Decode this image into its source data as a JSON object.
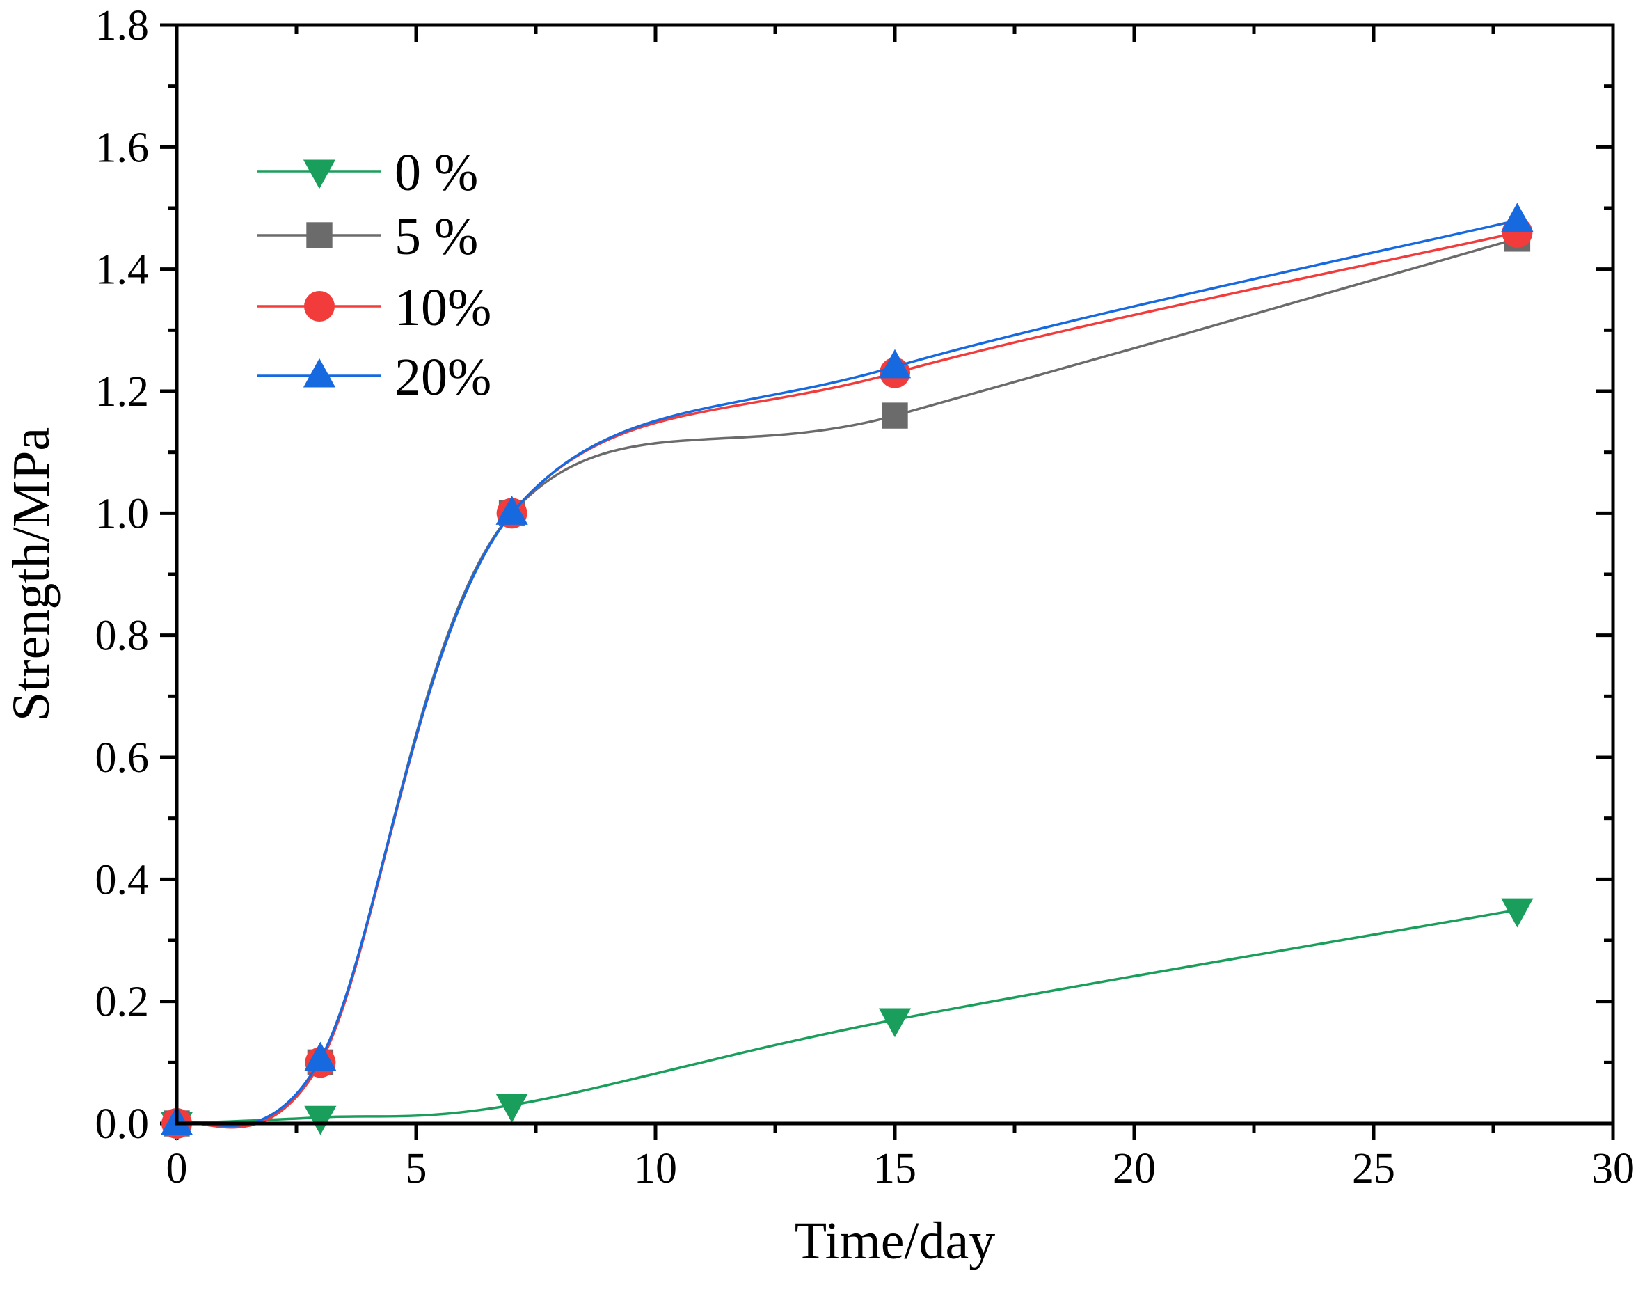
{
  "chart_data": {
    "type": "line",
    "title": "",
    "xlabel": "Time/day",
    "ylabel": "Strength/MPa",
    "xlim": [
      0,
      30
    ],
    "ylim": [
      0,
      1.8
    ],
    "x_ticks": [
      {
        "value": 0,
        "label": "0"
      },
      {
        "value": 5,
        "label": "5"
      },
      {
        "value": 10,
        "label": "10"
      },
      {
        "value": 15,
        "label": "15"
      },
      {
        "value": 20,
        "label": "20"
      },
      {
        "value": 25,
        "label": "25"
      },
      {
        "value": 30,
        "label": "30"
      }
    ],
    "y_ticks": [
      {
        "value": 0.0,
        "label": "0.0"
      },
      {
        "value": 0.2,
        "label": "0.2"
      },
      {
        "value": 0.4,
        "label": "0.4"
      },
      {
        "value": 0.6,
        "label": "0.6"
      },
      {
        "value": 0.8,
        "label": "0.8"
      },
      {
        "value": 1.0,
        "label": "1.0"
      },
      {
        "value": 1.2,
        "label": "1.2"
      },
      {
        "value": 1.4,
        "label": "1.4"
      },
      {
        "value": 1.6,
        "label": "1.6"
      },
      {
        "value": 1.8,
        "label": "1.8"
      }
    ],
    "x_minor_step": 2.5,
    "y_minor_step": 0.1,
    "grid": false,
    "legend_position": "top-left",
    "x": [
      0,
      3,
      7,
      15,
      28
    ],
    "series": [
      {
        "name": "0 %",
        "values": [
          0.0,
          0.01,
          0.03,
          0.17,
          0.35
        ],
        "color": "#1a9e5c",
        "marker": "triangle-down"
      },
      {
        "name": "5 %",
        "values": [
          0.0,
          0.1,
          1.0,
          1.16,
          1.45
        ],
        "color": "#6b6b6b",
        "marker": "square"
      },
      {
        "name": "10%",
        "values": [
          0.0,
          0.1,
          1.0,
          1.23,
          1.46
        ],
        "color": "#f23c3c",
        "marker": "circle"
      },
      {
        "name": "20%",
        "values": [
          0.0,
          0.105,
          1.0,
          1.24,
          1.48
        ],
        "color": "#1769e0",
        "marker": "triangle-up"
      }
    ]
  }
}
